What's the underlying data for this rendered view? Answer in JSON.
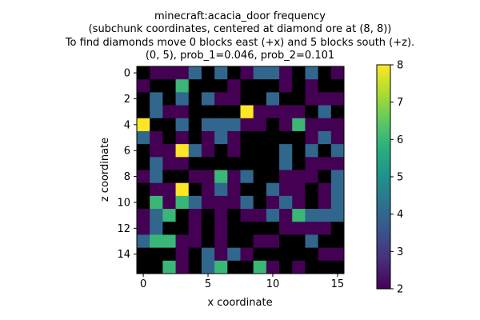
{
  "chart_data": {
    "type": "heatmap",
    "title_lines": [
      "minecraft:acacia_door frequency",
      "(subchunk coordinates, centered at diamond ore at (8, 8))",
      "To find diamonds move 0 blocks east (+x) and 5 blocks south (+z).",
      "(0, 5), prob_1=0.046, prob_2=0.101"
    ],
    "xlabel": "x coordinate",
    "ylabel": "z coordinate",
    "x_ticks": [
      0,
      5,
      10,
      15
    ],
    "y_ticks": [
      0,
      2,
      4,
      6,
      8,
      10,
      12,
      14
    ],
    "grid_size": 16,
    "colormap": "viridis",
    "colorbar": {
      "min": 2,
      "max": 8,
      "ticks": [
        2,
        3,
        4,
        5,
        6,
        7,
        8
      ]
    },
    "missing_color": "#000000",
    "legend": "colorbar, right",
    "values": [
      [
        null,
        2,
        2,
        2,
        4,
        null,
        4,
        null,
        2,
        4,
        4,
        2,
        null,
        4,
        null,
        2
      ],
      [
        2,
        null,
        null,
        6,
        null,
        null,
        null,
        2,
        null,
        null,
        null,
        2,
        null,
        2,
        null,
        null
      ],
      [
        null,
        4,
        null,
        4,
        null,
        4,
        2,
        2,
        null,
        null,
        4,
        null,
        null,
        2,
        2,
        2
      ],
      [
        null,
        4,
        2,
        2,
        null,
        null,
        null,
        null,
        8,
        2,
        2,
        2,
        2,
        null,
        4,
        null
      ],
      [
        8,
        null,
        null,
        4,
        null,
        4,
        4,
        4,
        2,
        2,
        null,
        2,
        6,
        2,
        2,
        2
      ],
      [
        4,
        2,
        null,
        2,
        null,
        2,
        4,
        2,
        null,
        null,
        null,
        null,
        null,
        2,
        4,
        2
      ],
      [
        null,
        2,
        2,
        8,
        4,
        2,
        null,
        2,
        null,
        null,
        null,
        4,
        null,
        4,
        null,
        4
      ],
      [
        null,
        4,
        2,
        2,
        null,
        null,
        null,
        null,
        null,
        null,
        null,
        4,
        null,
        2,
        2,
        2
      ],
      [
        2,
        4,
        null,
        null,
        2,
        2,
        6,
        2,
        4,
        null,
        null,
        2,
        2,
        2,
        null,
        4
      ],
      [
        null,
        2,
        2,
        8,
        null,
        2,
        4,
        2,
        null,
        null,
        4,
        2,
        2,
        null,
        2,
        4
      ],
      [
        null,
        6,
        2,
        6,
        4,
        2,
        2,
        2,
        4,
        null,
        2,
        4,
        2,
        null,
        2,
        4
      ],
      [
        2,
        4,
        6,
        null,
        2,
        null,
        2,
        null,
        2,
        2,
        4,
        2,
        6,
        4,
        4,
        4
      ],
      [
        2,
        4,
        null,
        null,
        2,
        null,
        2,
        null,
        null,
        null,
        null,
        2,
        2,
        2,
        2,
        null
      ],
      [
        4,
        6,
        6,
        2,
        2,
        null,
        2,
        null,
        null,
        2,
        2,
        null,
        null,
        4,
        null,
        null
      ],
      [
        null,
        null,
        null,
        2,
        null,
        4,
        2,
        4,
        2,
        null,
        null,
        null,
        null,
        null,
        2,
        2
      ],
      [
        null,
        null,
        6,
        2,
        null,
        4,
        6,
        null,
        null,
        6,
        2,
        null,
        2,
        null,
        null,
        null
      ]
    ]
  }
}
